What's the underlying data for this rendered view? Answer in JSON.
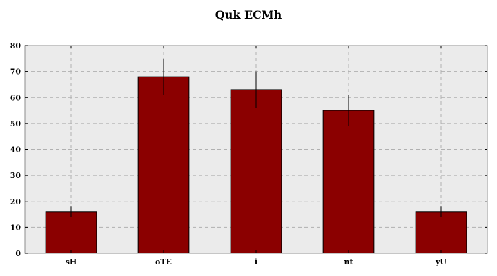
{
  "chart_data": {
    "type": "bar",
    "title": "Quk ECMh",
    "xlabel": "",
    "ylabel": "",
    "categories": [
      "sH",
      "oTE",
      "i",
      "nt",
      "yU"
    ],
    "values": [
      16,
      68,
      63,
      55,
      16
    ],
    "error": [
      2,
      7,
      7,
      6,
      2
    ],
    "ylim": [
      0,
      80
    ],
    "yticks": [
      0,
      10,
      20,
      30,
      40,
      50,
      60,
      70,
      80
    ],
    "grid": true,
    "colors": {
      "bar": "#8b0000",
      "bar_edge": "#000000",
      "plot_background": "#ebebeb",
      "grid": "#b0b0b0",
      "error_bar": "#000000"
    }
  }
}
